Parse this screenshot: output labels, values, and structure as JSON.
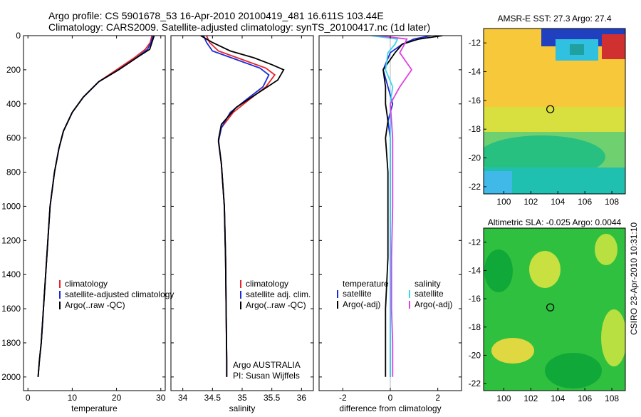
{
  "header": {
    "line1": "Argo profile: CS 5901678_53 16-Apr-2010 20100419_481 16.611S 103.44E",
    "line2": "Climatology: CARS2009. Satellite-adjusted climatology: synTS_20100417.nc (1d later)"
  },
  "side_label": "CSIRO 23-Apr-2010 10:31:10",
  "colors": {
    "climatology": "#e8242b",
    "satellite": "#1a2bd8",
    "argo": "#000000",
    "sat_salinity": "#38d8f0",
    "argo_salinity_adj": "#e040e0"
  },
  "chart_data": [
    {
      "type": "line",
      "xlabel": "temperature",
      "ylabel": "",
      "xlim": [
        -1,
        31
      ],
      "ylim": [
        2080,
        0
      ],
      "xticks": [
        "0",
        "10",
        "20",
        "30"
      ],
      "xtick_values": [
        0,
        10,
        20,
        30
      ],
      "yticks": [
        "0",
        "200",
        "400",
        "600",
        "800",
        "1000",
        "1200",
        "1400",
        "1600",
        "1800",
        "2000"
      ],
      "ytick_values": [
        0,
        200,
        400,
        600,
        800,
        1000,
        1200,
        1400,
        1600,
        1800,
        2000
      ],
      "legend": [
        "climatology",
        "satellite-adjusted climatology",
        "Argo(..raw -QC)"
      ],
      "series": [
        {
          "name": "climatology",
          "color_key": "climatology",
          "x": [
            28,
            27.6,
            26.5,
            24,
            20,
            16,
            12.5,
            10,
            8,
            7,
            6,
            5,
            4.5,
            4,
            3.5,
            3,
            2.6,
            2.3
          ],
          "y": [
            0,
            40,
            80,
            130,
            200,
            270,
            360,
            450,
            560,
            660,
            800,
            1000,
            1200,
            1400,
            1600,
            1800,
            1900,
            2000
          ]
        },
        {
          "name": "satellite-adjusted climatology",
          "color_key": "satellite",
          "x": [
            28.2,
            27.8,
            27,
            24.5,
            20.5,
            16,
            12.5,
            10,
            8,
            7,
            6,
            5,
            4.5,
            4,
            3.5,
            3,
            2.6,
            2.3
          ],
          "y": [
            0,
            40,
            80,
            130,
            200,
            270,
            360,
            450,
            560,
            660,
            800,
            1000,
            1200,
            1400,
            1600,
            1800,
            1900,
            2000
          ]
        },
        {
          "name": "Argo(..raw -QC)",
          "color_key": "argo",
          "x": [
            28.5,
            28,
            27.5,
            24.5,
            20.5,
            16,
            12.5,
            10,
            8,
            7,
            6,
            5,
            4.5,
            4,
            3.5,
            3,
            2.6,
            2.3
          ],
          "y": [
            0,
            40,
            80,
            130,
            200,
            270,
            360,
            450,
            560,
            660,
            800,
            1000,
            1200,
            1400,
            1600,
            1800,
            1900,
            2000
          ]
        }
      ]
    },
    {
      "type": "line",
      "xlabel": "salinity",
      "ylabel": "",
      "xlim": [
        33.8,
        36.2
      ],
      "ylim": [
        2080,
        0
      ],
      "xticks": [
        "34",
        "34.5",
        "35",
        "35.5",
        "36"
      ],
      "xtick_values": [
        34,
        34.5,
        35,
        35.5,
        36
      ],
      "legend": [
        "climatology",
        "satellite adj. clim.",
        "Argo(..raw -QC)"
      ],
      "annotation": [
        "Argo AUSTRALIA",
        "PI: Susan Wijffels"
      ],
      "series": [
        {
          "name": "climatology",
          "color_key": "climatology",
          "x": [
            34.4,
            34.45,
            34.6,
            35.0,
            35.4,
            35.55,
            35.4,
            35.1,
            34.85,
            34.65,
            34.6,
            34.65,
            34.7,
            34.72,
            34.73,
            34.74,
            34.74
          ],
          "y": [
            0,
            40,
            90,
            140,
            190,
            230,
            300,
            380,
            450,
            540,
            620,
            750,
            1000,
            1300,
            1600,
            1900,
            2000
          ]
        },
        {
          "name": "satellite adj. clim.",
          "color_key": "satellite",
          "x": [
            34.35,
            34.4,
            34.5,
            34.9,
            35.3,
            35.45,
            35.35,
            35.05,
            34.8,
            34.65,
            34.6,
            34.65,
            34.7,
            34.72,
            34.73,
            34.74,
            34.74
          ],
          "y": [
            0,
            40,
            90,
            140,
            190,
            230,
            300,
            380,
            450,
            540,
            620,
            750,
            1000,
            1300,
            1600,
            1900,
            2000
          ]
        },
        {
          "name": "Argo(..raw -QC)",
          "color_key": "argo",
          "x": [
            34.3,
            34.5,
            34.8,
            35.2,
            35.5,
            35.7,
            35.6,
            35.25,
            34.9,
            34.65,
            34.6,
            34.65,
            34.7,
            34.72,
            34.73,
            34.74,
            34.74
          ],
          "y": [
            0,
            40,
            90,
            130,
            170,
            200,
            260,
            340,
            420,
            520,
            610,
            750,
            1000,
            1300,
            1600,
            1900,
            2000
          ]
        }
      ]
    },
    {
      "type": "line",
      "xlabel": "difference from climatology",
      "ylabel": "",
      "xlim": [
        -3,
        3
      ],
      "ylim": [
        2080,
        0
      ],
      "xticks": [
        "-2",
        "0",
        "2"
      ],
      "xtick_values": [
        -2,
        0,
        2
      ],
      "legend_left_title": "temperature",
      "legend_right_title": "salinity",
      "legend_left": [
        "satellite",
        "Argo(-adj)"
      ],
      "legend_right": [
        "satellite",
        "Argo(-adj)"
      ],
      "series": [
        {
          "name": "temperature satellite",
          "color_key": "satellite",
          "x": [
            1.7,
            1.0,
            0.5,
            0.0,
            -0.3,
            -0.1,
            0.1,
            -0.1,
            0.0,
            0.0,
            0.0,
            0.0,
            0.0,
            0.0,
            0.0
          ],
          "y": [
            0,
            20,
            50,
            100,
            200,
            300,
            400,
            500,
            600,
            800,
            1000,
            1300,
            1600,
            1800,
            2000
          ]
        },
        {
          "name": "temperature Argo(-adj)",
          "color_key": "argo",
          "x": [
            2.2,
            1.2,
            0.5,
            0.2,
            -0.3,
            -0.2,
            -0.2,
            -0.1,
            -0.2,
            -0.1,
            -0.1,
            -0.1,
            -0.2,
            -0.2,
            -0.2
          ],
          "y": [
            0,
            20,
            50,
            100,
            200,
            300,
            400,
            500,
            600,
            800,
            1000,
            1300,
            1600,
            1800,
            2000
          ]
        },
        {
          "name": "salinity satellite",
          "color_key": "sat_salinity",
          "x": [
            -0.8,
            0.3,
            0.2,
            -0.1,
            -0.2,
            0.1,
            0.0,
            0.0,
            0.0,
            0.0,
            0.0,
            0.0,
            0.0,
            0.0,
            0.0
          ],
          "y": [
            0,
            20,
            50,
            100,
            200,
            300,
            400,
            500,
            600,
            800,
            1000,
            1300,
            1600,
            1800,
            2000
          ]
        },
        {
          "name": "salinity Argo(-adj)",
          "color_key": "argo_salinity_adj",
          "x": [
            -0.5,
            0.7,
            0.6,
            0.4,
            0.9,
            0.4,
            0.0,
            0.05,
            0.1,
            0.1,
            0.1,
            0.05,
            0.05,
            0.1,
            0.1
          ],
          "y": [
            0,
            20,
            50,
            100,
            200,
            300,
            400,
            500,
            600,
            800,
            1000,
            1300,
            1600,
            1800,
            2000
          ]
        }
      ]
    },
    {
      "type": "heatmap",
      "title": "AMSR-E SST: 27.3 Argo: 27.4",
      "xlim": [
        98.5,
        109
      ],
      "ylim": [
        -22.5,
        -11
      ],
      "xticks": [
        "100",
        "102",
        "104",
        "106",
        "108"
      ],
      "xtick_values": [
        100,
        102,
        104,
        106,
        108
      ],
      "yticks": [
        "-12",
        "-14",
        "-16",
        "-18",
        "-20",
        "-22"
      ],
      "ytick_values": [
        -12,
        -14,
        -16,
        -18,
        -20,
        -22
      ],
      "marker": {
        "lon": 103.44,
        "lat": -16.611
      }
    },
    {
      "type": "heatmap",
      "title": "Altimetric SLA: -0.025 Argo: 0.0044",
      "xlim": [
        98.5,
        109
      ],
      "ylim": [
        -22.5,
        -11
      ],
      "xticks": [
        "100",
        "102",
        "104",
        "106",
        "108"
      ],
      "xtick_values": [
        100,
        102,
        104,
        106,
        108
      ],
      "yticks": [
        "-12",
        "-14",
        "-16",
        "-18",
        "-20",
        "-22"
      ],
      "ytick_values": [
        -12,
        -14,
        -16,
        -18,
        -20,
        -22
      ],
      "marker": {
        "lon": 103.44,
        "lat": -16.611
      }
    }
  ]
}
